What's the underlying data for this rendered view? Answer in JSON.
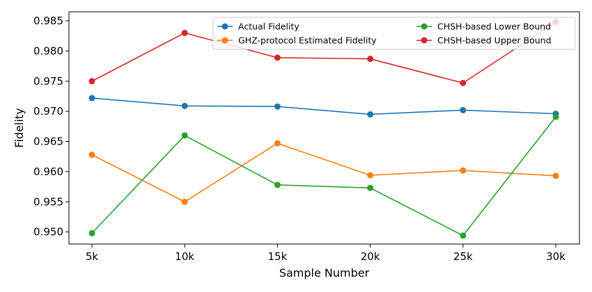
{
  "chart_data": {
    "type": "line",
    "xlabel": "Sample Number",
    "ylabel": "Fidelity",
    "categories": [
      "5k",
      "10k",
      "15k",
      "20k",
      "25k",
      "30k"
    ],
    "ylim": [
      0.948,
      0.9865
    ],
    "yticks": [
      0.95,
      0.955,
      0.96,
      0.965,
      0.97,
      0.975,
      0.98,
      0.985
    ],
    "ytick_labels": [
      "0.950",
      "0.955",
      "0.960",
      "0.965",
      "0.970",
      "0.975",
      "0.980",
      "0.985"
    ],
    "grid": false,
    "legend_position": "upper-right",
    "series": [
      {
        "name": "Actual Fidelity",
        "color": "#1f77b4",
        "values": [
          0.9722,
          0.9709,
          0.9708,
          0.9695,
          0.9702,
          0.9696
        ]
      },
      {
        "name": "GHZ-protocol Estimated Fidelity",
        "color": "#ff7f0e",
        "values": [
          0.9628,
          0.955,
          0.9647,
          0.9594,
          0.9602,
          0.9593
        ]
      },
      {
        "name": "CHSH-based Lower Bound",
        "color": "#2ca02c",
        "values": [
          0.9498,
          0.966,
          0.9578,
          0.9573,
          0.9494,
          0.9691
        ]
      },
      {
        "name": "CHSH-based Upper Bound",
        "color": "#d62728",
        "values": [
          0.975,
          0.983,
          0.9789,
          0.9787,
          0.9747,
          0.9848
        ]
      }
    ]
  }
}
